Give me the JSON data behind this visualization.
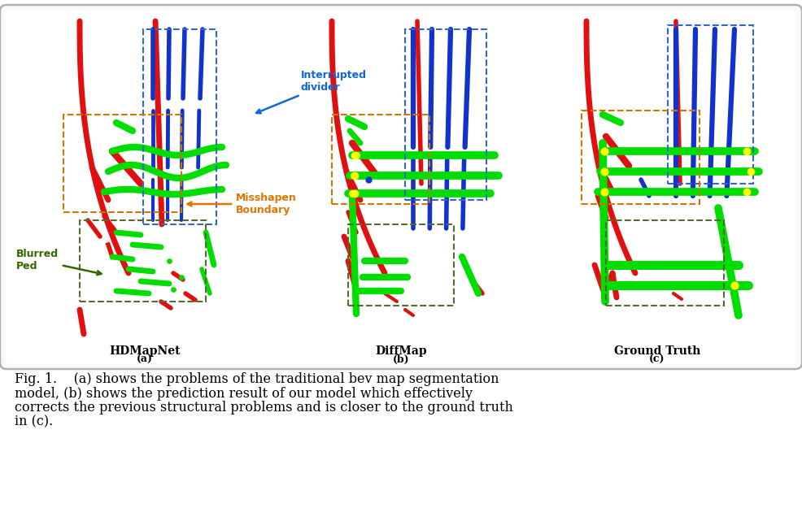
{
  "title_text_line1": "Fig. 1.    (a) shows the problems of the traditional bev map segmentation",
  "title_text_line2": "model, (b) shows the prediction result of our model which effectively",
  "title_text_line3": "corrects the previous structural problems and is closer to the ground truth",
  "title_text_line4": "in (c).",
  "panel_labels": [
    "HDMapNet",
    "DiffMap",
    "Ground Truth"
  ],
  "panel_sublabels": [
    "(a)",
    "(b)",
    "(c)"
  ],
  "annotation_interrupted": "Interrupted\ndivider",
  "annotation_misshapen": "Misshapen\nBoundary",
  "annotation_blurred": "Blurred\nPed",
  "colors": {
    "red": "#e01010",
    "blue": "#1133cc",
    "green": "#00dd00",
    "yellow": "#ffff00",
    "orange_annot": "#dd7700",
    "blue_annot": "#1166dd",
    "green_annot": "#336600",
    "dashed_blue": "#3366cc",
    "dashed_orange": "#cc7700",
    "dashed_green": "#556b2f",
    "box_border": "#aaaaaa",
    "box_bg": "#f7f7f7"
  },
  "figsize": [
    9.86,
    6.41
  ],
  "dpi": 100
}
